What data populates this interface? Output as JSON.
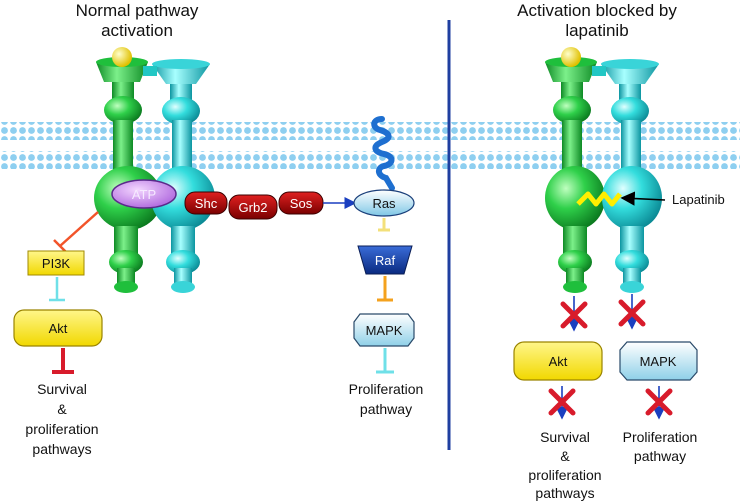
{
  "left_panel": {
    "title_line1": "Normal pathway",
    "title_line2": "activation",
    "atp_label": "ATP",
    "shc_label": "Shc",
    "grb2_label": "Grb2",
    "sos_label": "Sos",
    "ras_label": "Ras",
    "raf_label": "Raf",
    "mapk_label": "MAPK",
    "pi3k_label": "PI3K",
    "akt_label": "Akt",
    "survival_line1": "Survival",
    "survival_line2": "&",
    "survival_line3": "proliferation",
    "survival_line4": "pathways",
    "proliferation_line1": "Proliferation",
    "proliferation_line2": "pathway"
  },
  "right_panel": {
    "title_line1": "Activation blocked by",
    "title_line2": "lapatinib",
    "lapatinib_label": "Lapatinib",
    "akt_label": "Akt",
    "mapk_label": "MAPK",
    "survival_line1": "Survival",
    "survival_line2": "&",
    "survival_line3": "proliferation",
    "survival_line4": "pathways",
    "proliferation_line1": "Proliferation",
    "proliferation_line2": "pathway"
  },
  "colors": {
    "green_receptor": "#22cc44",
    "cyan_receptor": "#33dddd",
    "membrane": "#8ecff0",
    "divider": "#1f3fa0",
    "red_block": "#d81b2b",
    "yellow_box": "#ffee00"
  }
}
